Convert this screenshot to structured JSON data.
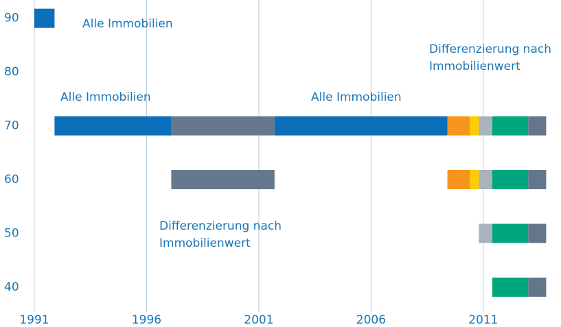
{
  "chart_data": {
    "type": "timeline",
    "xlim": [
      1991,
      2014.4
    ],
    "ylim": [
      35.4,
      93.4
    ],
    "xticks": [
      1991,
      1996,
      2001,
      2006,
      2011
    ],
    "yticks": [
      40,
      50,
      60,
      70,
      80,
      90
    ],
    "grid": true,
    "segments": [
      {
        "y": 90,
        "start": 1991.0,
        "end": 1991.9,
        "color": "#0b6fba"
      },
      {
        "y": 70,
        "start": 1991.9,
        "end": 1997.1,
        "color": "#0b6fba"
      },
      {
        "y": 70,
        "start": 1997.1,
        "end": 2001.7,
        "color": "#66798c"
      },
      {
        "y": 70,
        "start": 2001.7,
        "end": 2009.4,
        "color": "#0b6fba"
      },
      {
        "y": 70,
        "start": 2009.4,
        "end": 2010.4,
        "color": "#f7941d"
      },
      {
        "y": 70,
        "start": 2010.4,
        "end": 2010.8,
        "color": "#ffcc00"
      },
      {
        "y": 70,
        "start": 2010.8,
        "end": 2011.4,
        "color": "#a8b3bc"
      },
      {
        "y": 70,
        "start": 2011.4,
        "end": 2013.0,
        "color": "#00a67e"
      },
      {
        "y": 70,
        "start": 2013.0,
        "end": 2013.8,
        "color": "#63768a"
      },
      {
        "y": 60,
        "start": 1997.1,
        "end": 2001.7,
        "color": "#66798c"
      },
      {
        "y": 60,
        "start": 2009.4,
        "end": 2010.4,
        "color": "#f7941d"
      },
      {
        "y": 60,
        "start": 2010.4,
        "end": 2010.8,
        "color": "#ffcc00"
      },
      {
        "y": 60,
        "start": 2010.8,
        "end": 2011.4,
        "color": "#a8b3bc"
      },
      {
        "y": 60,
        "start": 2011.4,
        "end": 2013.0,
        "color": "#00a67e"
      },
      {
        "y": 60,
        "start": 2013.0,
        "end": 2013.8,
        "color": "#63768a"
      },
      {
        "y": 50,
        "start": 2010.8,
        "end": 2011.4,
        "color": "#a8b3bc"
      },
      {
        "y": 50,
        "start": 2011.4,
        "end": 2013.0,
        "color": "#00a67e"
      },
      {
        "y": 50,
        "start": 2013.0,
        "end": 2013.8,
        "color": "#63768a"
      },
      {
        "y": 40,
        "start": 2011.4,
        "end": 2013.0,
        "color": "#00a67e"
      },
      {
        "y": 40,
        "start": 2013.0,
        "end": 2013.8,
        "color": "#63768a"
      }
    ],
    "annotations": [
      [
        "Alle Immobilien"
      ],
      [
        "Differenzierung nach",
        "Immobilienwert"
      ],
      [
        "Alle Immobilien"
      ],
      [
        "Alle Immobilien"
      ],
      [
        "Differenzierung nach",
        "Immobilienwert"
      ]
    ]
  }
}
